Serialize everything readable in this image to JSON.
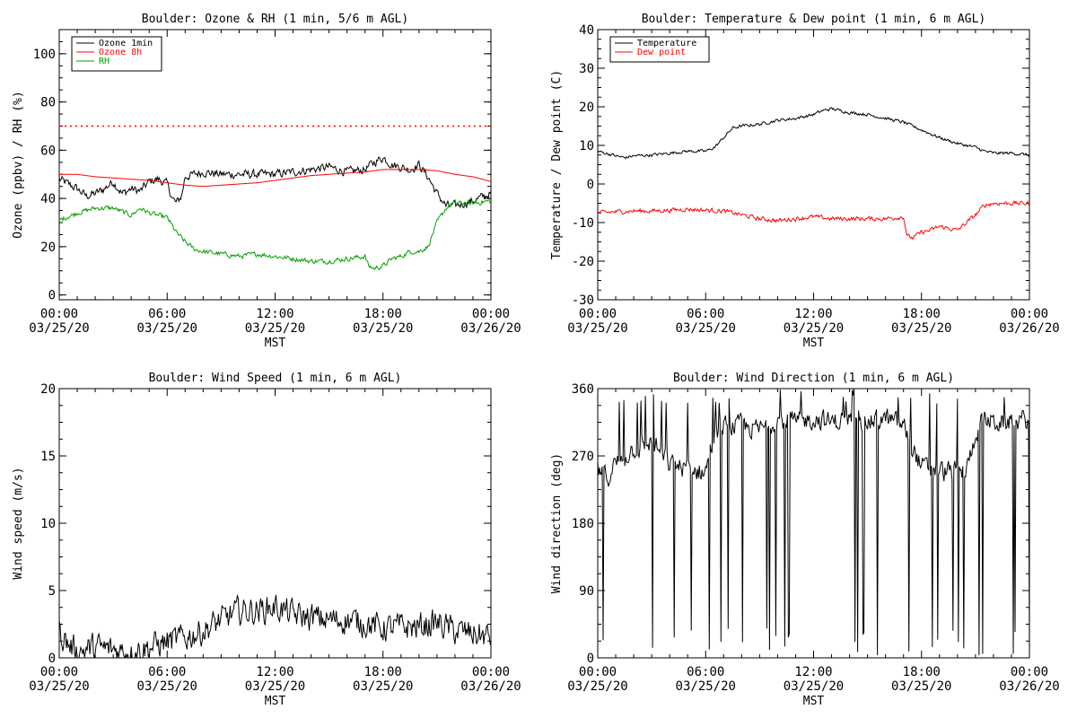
{
  "chart_data": [
    {
      "type": "line",
      "title": "Boulder: Ozone & RH (1 min, 5/6 m AGL)",
      "xlabel": "MST",
      "ylabel": "Ozone (ppbv) / RH (%)",
      "xticks": [
        [
          "00:00",
          "03/25/20"
        ],
        [
          "06:00",
          "03/25/20"
        ],
        [
          "12:00",
          "03/25/20"
        ],
        [
          "18:00",
          "03/25/20"
        ],
        [
          "00:00",
          "03/26/20"
        ]
      ],
      "xlim": [
        0,
        24
      ],
      "ylim": [
        -2,
        110
      ],
      "yticks": [
        0,
        20,
        40,
        60,
        80,
        100
      ],
      "legend": "top-left",
      "series": [
        {
          "name": "Ozone 1min",
          "color": "#000000",
          "noise": 1.6,
          "x": [
            0,
            1,
            1.5,
            2,
            2.5,
            3,
            3.5,
            4,
            4.5,
            5,
            5.5,
            6,
            6.3,
            6.5,
            6.8,
            7,
            7.5,
            8,
            9,
            10,
            11,
            12,
            13,
            14,
            15,
            16,
            17,
            17.5,
            18,
            18.5,
            19,
            19.5,
            20,
            20.5,
            21,
            21.5,
            22,
            22.5,
            23,
            24
          ],
          "y": [
            48,
            44,
            41,
            42,
            44,
            47,
            42,
            44,
            43,
            47,
            48,
            46,
            40,
            38,
            41,
            49,
            50,
            51,
            50,
            50,
            50,
            50,
            51,
            52,
            53,
            51,
            52,
            55,
            57,
            54,
            53,
            52,
            54,
            49,
            42,
            37,
            37,
            38,
            39,
            42
          ]
        },
        {
          "name": "Ozone 8h",
          "color": "#ff0000",
          "noise": 0,
          "x": [
            0,
            1,
            2,
            3,
            4,
            5,
            6,
            7,
            8,
            9,
            10,
            11,
            12,
            13,
            14,
            15,
            16,
            17,
            18,
            19,
            20,
            21,
            22,
            23,
            24
          ],
          "y": [
            50,
            50,
            49,
            48.5,
            48,
            47.5,
            46.5,
            45.5,
            45,
            45.5,
            46,
            46.5,
            47.5,
            48.5,
            49.5,
            50,
            50.5,
            51,
            52,
            52,
            52,
            51.5,
            50,
            49,
            47
          ]
        },
        {
          "name": "",
          "color": "#ff0000",
          "noise": 0,
          "dotted": true,
          "x": [
            0,
            24
          ],
          "y": [
            70,
            70
          ]
        },
        {
          "name": "RH",
          "color": "#00a000",
          "noise": 0.9,
          "x": [
            0,
            1,
            2,
            3,
            4,
            4.5,
            5,
            6,
            6.5,
            7,
            7.5,
            8,
            9,
            10,
            11,
            12,
            13,
            14,
            15,
            16,
            17,
            17.2,
            17.5,
            18,
            18.5,
            19,
            19.5,
            20,
            20.5,
            21,
            21.5,
            22,
            22.5,
            23,
            24
          ],
          "y": [
            31,
            34,
            36,
            36,
            33,
            36,
            34,
            32,
            26,
            22,
            19,
            18,
            17,
            16,
            17,
            16,
            15,
            14,
            14,
            15,
            16,
            12,
            11,
            12,
            15,
            16,
            18,
            18,
            20,
            30,
            36,
            38,
            38,
            38,
            39
          ]
        }
      ]
    },
    {
      "type": "line",
      "title": "Boulder: Temperature & Dew point (1 min, 6 m AGL)",
      "xlabel": "MST",
      "ylabel": "Temperature / Dew point (C)",
      "xticks": [
        [
          "00:00",
          "03/25/20"
        ],
        [
          "06:00",
          "03/25/20"
        ],
        [
          "12:00",
          "03/25/20"
        ],
        [
          "18:00",
          "03/25/20"
        ],
        [
          "00:00",
          "03/26/20"
        ]
      ],
      "xlim": [
        0,
        24
      ],
      "ylim": [
        -30,
        40
      ],
      "yticks": [
        -30,
        -20,
        -10,
        0,
        10,
        20,
        30,
        40
      ],
      "legend": "top-left",
      "series": [
        {
          "name": "Temperature",
          "color": "#000000",
          "noise": 0.35,
          "x": [
            0,
            1,
            1.5,
            2,
            3,
            4,
            5,
            6,
            6.5,
            7,
            7.5,
            8,
            9,
            10,
            11,
            12,
            12.5,
            13,
            14,
            15,
            16,
            17,
            18,
            19,
            20,
            21,
            21.5,
            22,
            23,
            24
          ],
          "y": [
            8.5,
            7.3,
            6.8,
            7.3,
            7.5,
            8,
            8.5,
            8.5,
            9.5,
            12,
            14.5,
            15,
            15.5,
            16.5,
            17,
            18,
            19,
            19.5,
            18.5,
            18,
            17,
            16,
            14,
            12,
            10.5,
            9.5,
            8.5,
            8,
            8,
            7.5
          ]
        },
        {
          "name": "Dew point",
          "color": "#ff0000",
          "noise": 0.5,
          "x": [
            0,
            1,
            2,
            3,
            4,
            5,
            6,
            7,
            8,
            9,
            10,
            11,
            12,
            13,
            14,
            15,
            16,
            17,
            17.2,
            17.5,
            18,
            18.5,
            19,
            19.5,
            20,
            20.5,
            21,
            21.5,
            22,
            23,
            24
          ],
          "y": [
            -7.5,
            -7.2,
            -7,
            -7,
            -6.8,
            -6.5,
            -6.8,
            -7,
            -8,
            -9,
            -9.5,
            -9,
            -8.5,
            -9,
            -9,
            -9,
            -9,
            -8.5,
            -13.5,
            -14,
            -12.5,
            -12,
            -11,
            -11.5,
            -12,
            -10,
            -8,
            -5.5,
            -5,
            -5,
            -5
          ]
        }
      ]
    },
    {
      "type": "line",
      "title": "Boulder: Wind Speed (1 min, 6 m AGL)",
      "xlabel": "MST",
      "ylabel": "Wind speed (m/s)",
      "xticks": [
        [
          "00:00",
          "03/25/20"
        ],
        [
          "06:00",
          "03/25/20"
        ],
        [
          "12:00",
          "03/25/20"
        ],
        [
          "18:00",
          "03/25/20"
        ],
        [
          "00:00",
          "03/26/20"
        ]
      ],
      "xlim": [
        0,
        24
      ],
      "ylim": [
        0,
        20
      ],
      "yticks": [
        0,
        5,
        10,
        15,
        20
      ],
      "legend": "none",
      "series": [
        {
          "name": "",
          "color": "#000000",
          "noise": 0.9,
          "floor": 0,
          "x": [
            0,
            0.5,
            1,
            2,
            3,
            4,
            5,
            6,
            7,
            8,
            9,
            10,
            11,
            12,
            13,
            14,
            15,
            16,
            17,
            18,
            19,
            20,
            21,
            22,
            23,
            24
          ],
          "y": [
            2,
            1,
            0.5,
            0.8,
            0.6,
            0.5,
            0.8,
            1.2,
            1.5,
            2,
            2.8,
            3.5,
            3.5,
            3.8,
            3.2,
            3,
            2.8,
            2.8,
            2.6,
            2.2,
            2.3,
            2.3,
            2.6,
            2,
            1.8,
            1.5
          ]
        }
      ]
    },
    {
      "type": "line",
      "title": "Boulder: Wind Direction (1 min, 6 m AGL)",
      "xlabel": "MST",
      "ylabel": "Wind direction (deg)",
      "xticks": [
        [
          "00:00",
          "03/25/20"
        ],
        [
          "06:00",
          "03/25/20"
        ],
        [
          "12:00",
          "03/25/20"
        ],
        [
          "18:00",
          "03/25/20"
        ],
        [
          "00:00",
          "03/26/20"
        ]
      ],
      "xlim": [
        0,
        24
      ],
      "ylim": [
        0,
        360
      ],
      "yticks": [
        0,
        90,
        180,
        270,
        360
      ],
      "legend": "none",
      "series": [
        {
          "name": "",
          "color": "#000000",
          "noise": 12,
          "floor": 0,
          "ceil": 360,
          "spikes": 0.12,
          "x": [
            0,
            0.5,
            1,
            2,
            3,
            4,
            4.5,
            5,
            5.5,
            6,
            6.5,
            7,
            8,
            9,
            10,
            11,
            12,
            13,
            14,
            15,
            16,
            17,
            18,
            19,
            20,
            20.5,
            21,
            21.5,
            22,
            23,
            24
          ],
          "y": [
            250,
            240,
            260,
            280,
            290,
            260,
            255,
            255,
            250,
            250,
            300,
            310,
            310,
            305,
            320,
            315,
            320,
            315,
            320,
            315,
            320,
            310,
            255,
            250,
            248,
            250,
            300,
            320,
            315,
            315,
            320
          ]
        }
      ]
    }
  ]
}
